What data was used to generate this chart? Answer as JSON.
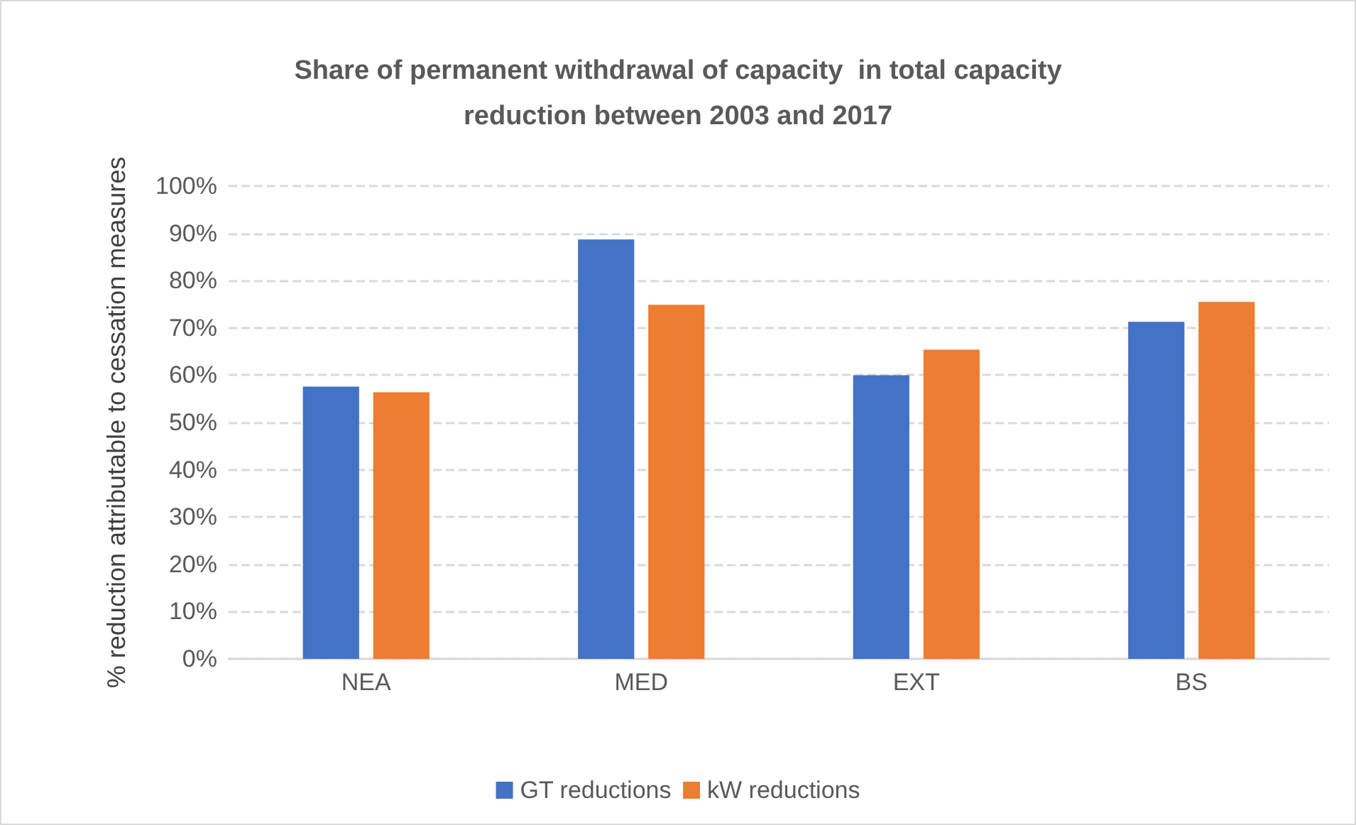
{
  "chart_data": {
    "type": "bar",
    "title": "Share of permanent withdrawal of capacity  in total capacity\nreduction between 2003 and 2017",
    "ylabel": "% reduction attributable to cessation measures",
    "categories": [
      "NEA",
      "MED",
      "EXT",
      "BS"
    ],
    "series": [
      {
        "name": "GT reductions",
        "color": "#4472c4",
        "values": [
          57.6,
          88.7,
          60.0,
          71.3
        ]
      },
      {
        "name": "kW reductions",
        "color": "#ed7d31",
        "values": [
          56.4,
          74.9,
          65.4,
          75.5
        ]
      }
    ],
    "ylim": [
      0,
      100
    ],
    "yticks": [
      {
        "value": 0,
        "label": "0%"
      },
      {
        "value": 10,
        "label": "10%"
      },
      {
        "value": 20,
        "label": "20%"
      },
      {
        "value": 30,
        "label": "30%"
      },
      {
        "value": 40,
        "label": "40%"
      },
      {
        "value": 50,
        "label": "50%"
      },
      {
        "value": 60,
        "label": "60%"
      },
      {
        "value": 70,
        "label": "70%"
      },
      {
        "value": 80,
        "label": "80%"
      },
      {
        "value": 90,
        "label": "90%"
      },
      {
        "value": 100,
        "label": "100%"
      }
    ],
    "grid": "y",
    "legend": "bottom"
  }
}
